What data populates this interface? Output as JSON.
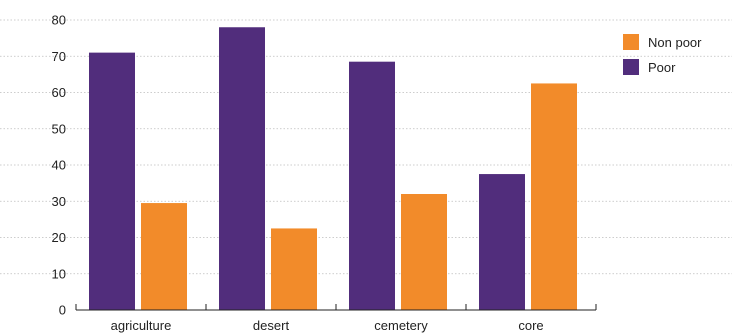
{
  "chart_data": {
    "type": "bar",
    "title": "",
    "xlabel": "",
    "ylabel": "",
    "categories": [
      "agriculture",
      "desert",
      "cemetery",
      "core"
    ],
    "series": [
      {
        "name": "Poor",
        "color": "#512d7c",
        "values": [
          71,
          78,
          68.5,
          37.5
        ]
      },
      {
        "name": "Non poor",
        "color": "#f28b2a",
        "values": [
          29.5,
          22.5,
          32,
          62.5
        ]
      }
    ],
    "legend_order": [
      "Non poor",
      "Poor"
    ],
    "ylim": [
      0,
      80
    ],
    "yticks": [
      0,
      10,
      20,
      30,
      40,
      50,
      60,
      70,
      80
    ],
    "grid": true,
    "legend_position": "top-right"
  }
}
